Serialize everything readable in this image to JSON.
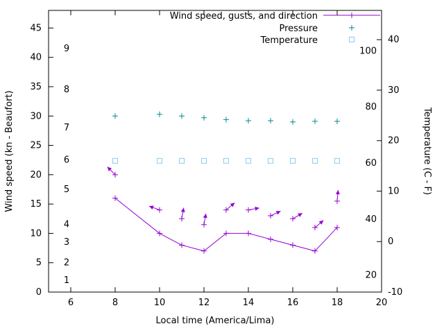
{
  "chart_data": {
    "type": "line",
    "title": "",
    "xlabel": "Local time (America/Lima)",
    "ylabel_left": "Wind speed (kn - Beaufort)",
    "ylabel_right": "Temperature (C - F)",
    "legend_position": "top-right",
    "grid": false,
    "x_range": [
      5,
      20
    ],
    "x_ticks": [
      6,
      8,
      10,
      12,
      14,
      16,
      18,
      20
    ],
    "y_left_range_kn": [
      0,
      48
    ],
    "y_left_ticks_kn": [
      0,
      5,
      10,
      15,
      20,
      25,
      30,
      35,
      40,
      45
    ],
    "y_left_ticks_beaufort": [
      {
        "label": "1",
        "kn": 2
      },
      {
        "label": "2",
        "kn": 5
      },
      {
        "label": "3",
        "kn": 8.5
      },
      {
        "label": "4",
        "kn": 11.5
      },
      {
        "label": "5",
        "kn": 17.5
      },
      {
        "label": "6",
        "kn": 22.5
      },
      {
        "label": "7",
        "kn": 28
      },
      {
        "label": "8",
        "kn": 34.5
      },
      {
        "label": "9",
        "kn": 41.5
      }
    ],
    "y_right_range_c": [
      -10,
      45.8
    ],
    "y_right_ticks_c": [
      -10,
      0,
      10,
      20,
      30,
      40
    ],
    "y_right_ticks_f": [
      20,
      40,
      60,
      80,
      100
    ],
    "x": [
      8,
      10,
      11,
      12,
      13,
      14,
      15,
      16,
      17,
      18
    ],
    "series": [
      {
        "name": "Wind speed, gusts, and direction",
        "color": "#9400d3",
        "style": "line-plus-arrows",
        "wind_speed_kn": [
          16,
          10,
          8,
          7,
          10,
          10,
          9,
          8,
          7,
          11
        ],
        "gust_kn": [
          20,
          14,
          12.5,
          11.5,
          14,
          14,
          13,
          12.5,
          11,
          15.5
        ],
        "direction_deg": [
          135,
          160,
          80,
          80,
          40,
          10,
          25,
          30,
          40,
          85
        ]
      },
      {
        "name": "Pressure",
        "color": "#008b8b",
        "style": "plus",
        "values_on_left_scale": [
          30,
          30.3,
          30,
          29.7,
          29.4,
          29.2,
          29.2,
          29,
          29.1,
          29.1
        ]
      },
      {
        "name": "Temperature",
        "color": "#87ceeb",
        "style": "open-square",
        "values_c": [
          16,
          16,
          16,
          16,
          16,
          16,
          16,
          16,
          16,
          16
        ]
      }
    ]
  }
}
